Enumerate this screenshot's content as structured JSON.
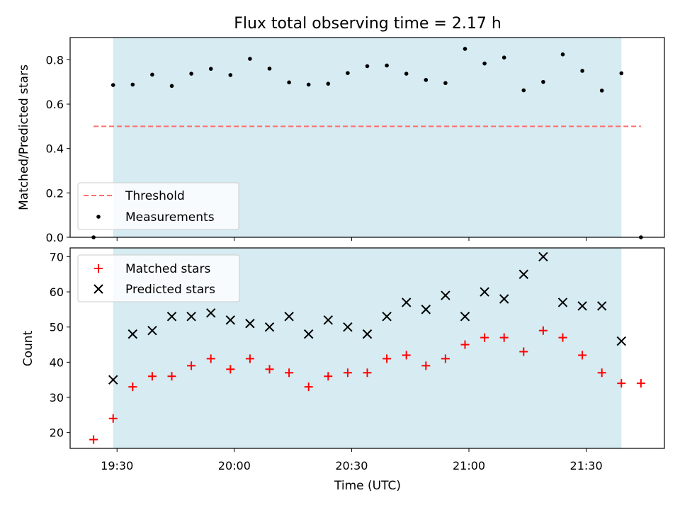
{
  "chart_data": [
    {
      "type": "scatter",
      "title": "Flux total observing time = 2.17 h",
      "ylabel": "Matched/Predicted stars",
      "xlabel": "",
      "ylim": [
        0,
        0.9
      ],
      "yticks": [
        "0.0",
        "0.2",
        "0.4",
        "0.6",
        "0.8"
      ],
      "grid": false,
      "legend_position": "lower-left",
      "x_times": [
        "19:24",
        "19:29",
        "19:34",
        "19:39",
        "19:44",
        "19:49",
        "19:54",
        "19:59",
        "20:04",
        "20:09",
        "20:14",
        "20:19",
        "20:24",
        "20:29",
        "20:34",
        "20:39",
        "20:44",
        "20:49",
        "20:54",
        "20:59",
        "21:04",
        "21:09",
        "21:14",
        "21:19",
        "21:24",
        "21:29",
        "21:34",
        "21:39",
        "21:44"
      ],
      "series": [
        {
          "name": "Measurements",
          "color": "#000000",
          "marker": "dot",
          "values": [
            0.0,
            0.686,
            0.688,
            0.733,
            0.682,
            0.737,
            0.759,
            0.731,
            0.804,
            0.76,
            0.698,
            0.688,
            0.692,
            0.74,
            0.771,
            0.774,
            0.737,
            0.709,
            0.695,
            0.849,
            0.783,
            0.81,
            0.662,
            0.7,
            0.824,
            0.75,
            0.661,
            0.739,
            0.0
          ]
        },
        {
          "name": "Threshold",
          "color": "#ff6f6f",
          "style": "dashed",
          "value": 0.5
        }
      ]
    },
    {
      "type": "scatter",
      "xlabel": "Time (UTC)",
      "ylabel": "Count",
      "ylim": [
        15.5,
        72.5
      ],
      "yticks": [
        "20",
        "30",
        "40",
        "50",
        "60",
        "70"
      ],
      "xticks": [
        "19:30",
        "20:00",
        "20:30",
        "21:00",
        "21:30"
      ],
      "grid": false,
      "legend_position": "upper-left",
      "shaded_interval": [
        "19:29",
        "21:39"
      ],
      "shade_color": "#add8e6",
      "series": [
        {
          "name": "Matched stars",
          "color": "#ff0000",
          "marker": "plus",
          "x": [
            "19:24",
            "19:29",
            "19:34",
            "19:39",
            "19:44",
            "19:49",
            "19:54",
            "19:59",
            "20:04",
            "20:09",
            "20:14",
            "20:19",
            "20:24",
            "20:29",
            "20:34",
            "20:39",
            "20:44",
            "20:49",
            "20:54",
            "20:59",
            "21:04",
            "21:09",
            "21:14",
            "21:19",
            "21:24",
            "21:29",
            "21:34",
            "21:39",
            "21:44"
          ],
          "values": [
            18,
            24,
            33,
            36,
            36,
            39,
            41,
            38,
            41,
            38,
            37,
            33,
            36,
            37,
            37,
            41,
            42,
            39,
            41,
            45,
            47,
            47,
            43,
            49,
            47,
            42,
            37,
            34,
            34
          ]
        },
        {
          "name": "Predicted stars",
          "color": "#000000",
          "marker": "x",
          "x": [
            "19:29",
            "19:34",
            "19:39",
            "19:44",
            "19:49",
            "19:54",
            "19:59",
            "20:04",
            "20:09",
            "20:14",
            "20:19",
            "20:24",
            "20:29",
            "20:34",
            "20:39",
            "20:44",
            "20:49",
            "20:54",
            "20:59",
            "21:04",
            "21:09",
            "21:14",
            "21:19",
            "21:24",
            "21:29",
            "21:34",
            "21:39"
          ],
          "values": [
            35,
            48,
            49,
            53,
            53,
            54,
            52,
            51,
            50,
            53,
            48,
            52,
            50,
            48,
            53,
            57,
            55,
            59,
            53,
            60,
            58,
            65,
            70,
            57,
            56,
            56,
            46
          ]
        }
      ]
    }
  ]
}
